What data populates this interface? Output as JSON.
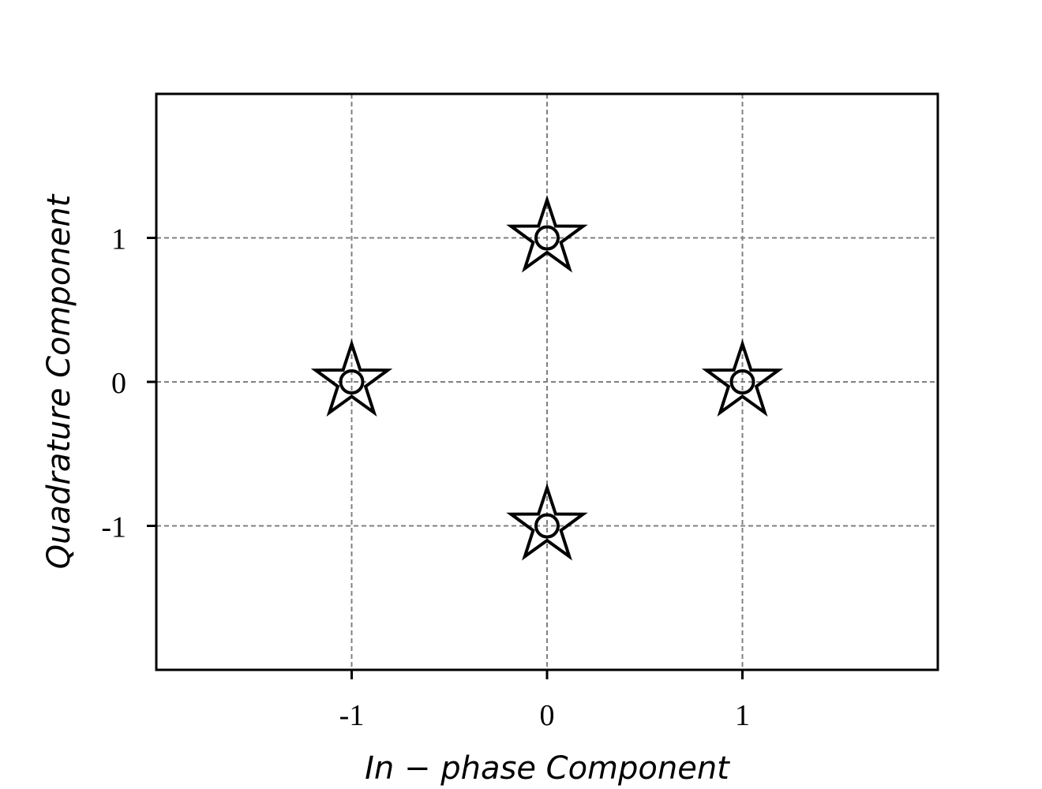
{
  "chart_data": {
    "type": "scatter",
    "title": "",
    "xlabel": "In − phase Component",
    "ylabel": "Quadrature Component",
    "xlim": [
      -2,
      2
    ],
    "ylim": [
      -2,
      2
    ],
    "xticks": [
      -1,
      0,
      1
    ],
    "yticks": [
      -1,
      0,
      1
    ],
    "xtick_labels": [
      "-1",
      "0",
      "1"
    ],
    "ytick_labels": [
      "-1",
      "0",
      "1"
    ],
    "grid": true,
    "grid_style": "dashed",
    "grid_color": "#808080",
    "axes_color": "#000000",
    "marker": "star-with-circle",
    "marker_color": "#000000",
    "points": [
      {
        "x": 0,
        "y": 1
      },
      {
        "x": -1,
        "y": 0
      },
      {
        "x": 1,
        "y": 0
      },
      {
        "x": 0,
        "y": -1
      }
    ]
  }
}
